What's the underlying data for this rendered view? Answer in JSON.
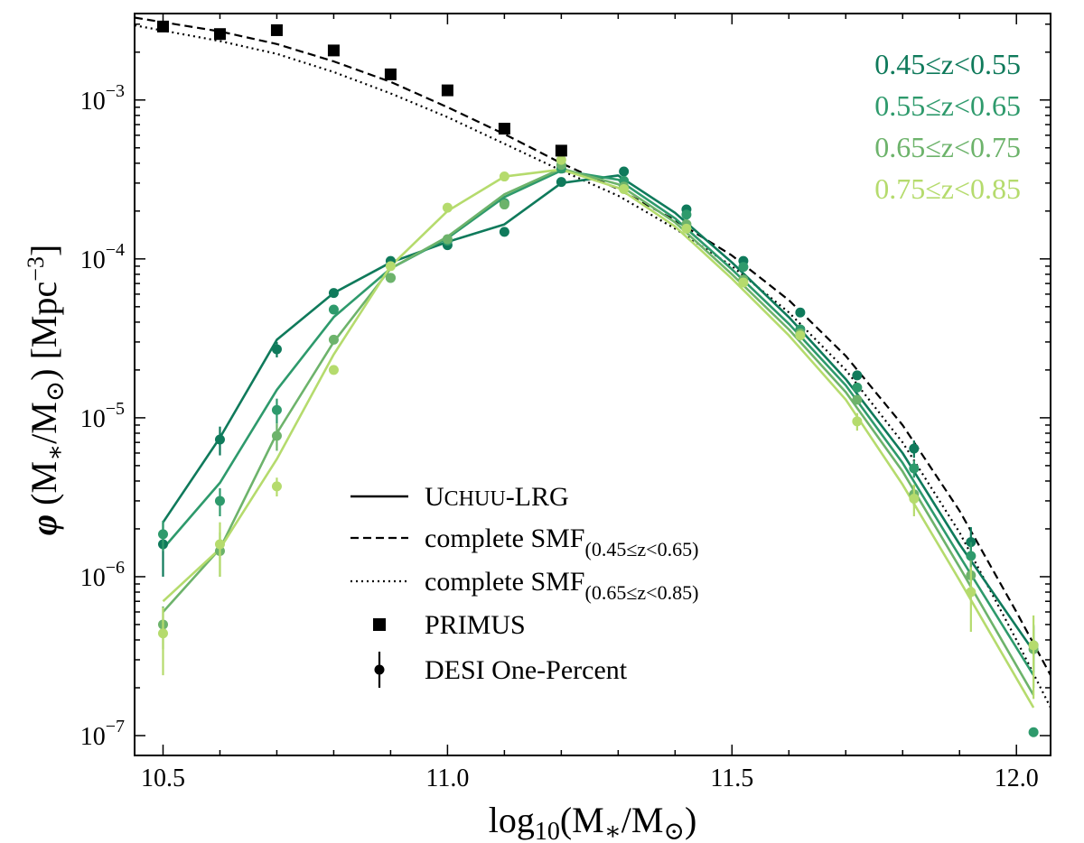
{
  "chart_data": {
    "type": "line",
    "xlabel": "log10(M*/M⊙)",
    "ylabel": "φ (M*/M⊙) [Mpc^-3]",
    "xlim": [
      10.45,
      12.06
    ],
    "ylog": true,
    "ylim": [
      7.5e-08,
      0.0035
    ],
    "x_ticks": [
      10.5,
      11.0,
      11.5,
      12.0
    ],
    "x_tick_labels": [
      "10.5",
      "11.0",
      "11.5",
      "12.0"
    ],
    "y_ticks": [
      1e-07,
      1e-06,
      1e-05,
      0.0001,
      0.001
    ],
    "y_tick_labels": [
      {
        "base": "10",
        "exp": "−7"
      },
      {
        "base": "10",
        "exp": "−6"
      },
      {
        "base": "10",
        "exp": "−5"
      },
      {
        "base": "10",
        "exp": "−4"
      },
      {
        "base": "10",
        "exp": "−3"
      }
    ],
    "series": [
      {
        "name": "0.45≤z<0.55",
        "color": "#0f7a5b",
        "model_x": [
          10.5,
          10.6,
          10.7,
          10.8,
          10.9,
          11.0,
          11.1,
          11.2,
          11.3,
          11.4,
          11.5,
          11.6,
          11.7,
          11.8,
          11.9,
          12.03
        ],
        "model_y": [
          2.2e-06,
          7.5e-06,
          3.1e-05,
          6.1e-05,
          9.5e-05,
          0.000128,
          0.000165,
          0.0003,
          0.000335,
          0.000195,
          9.5e-05,
          4.3e-05,
          1.75e-05,
          6e-06,
          1.6e-06,
          3.4e-07
        ],
        "obs_x": [
          10.5,
          10.6,
          10.7,
          10.8,
          10.9,
          11.0,
          11.1,
          11.2,
          11.31,
          11.42,
          11.52,
          11.62,
          11.72,
          11.82,
          11.92,
          12.03
        ],
        "obs_y": [
          1.6e-06,
          7.3e-06,
          2.7e-05,
          6.1e-05,
          9.7e-05,
          0.000122,
          0.000148,
          0.000305,
          0.000355,
          0.000205,
          9.7e-05,
          4.6e-05,
          1.85e-05,
          6.4e-06,
          1.65e-06,
          3.7e-07
        ],
        "obs_err": [
          6e-07,
          1.5e-06,
          3e-06,
          0,
          0,
          0,
          0,
          0,
          0,
          0,
          0,
          0,
          0,
          8e-07,
          4e-07,
          1.2e-07
        ]
      },
      {
        "name": "0.55≤z<0.65",
        "color": "#2e9a6c",
        "model_x": [
          10.5,
          10.6,
          10.7,
          10.8,
          10.9,
          11.0,
          11.1,
          11.2,
          11.3,
          11.4,
          11.5,
          11.6,
          11.7,
          11.8,
          11.9,
          12.03
        ],
        "model_y": [
          1.5e-06,
          3.9e-06,
          1.5e-05,
          4.3e-05,
          8.7e-05,
          0.000135,
          0.000245,
          0.00036,
          0.000315,
          0.00018,
          8.6e-05,
          3.9e-05,
          1.6e-05,
          5.2e-06,
          1.35e-06,
          2.4e-07
        ],
        "obs_x": [
          10.5,
          10.6,
          10.7,
          10.8,
          10.9,
          11.0,
          11.1,
          11.2,
          11.31,
          11.42,
          11.52,
          11.62,
          11.72,
          11.82,
          11.92,
          12.03
        ],
        "obs_y": [
          1.85e-06,
          3e-06,
          1.12e-05,
          4.8e-05,
          7.6e-05,
          0.00013,
          0.000225,
          0.00037,
          0.00031,
          0.00019,
          8.9e-05,
          3.6e-05,
          1.55e-05,
          4.8e-06,
          1.35e-06,
          1.05e-07
        ],
        "obs_err": [
          4e-07,
          6e-07,
          2e-06,
          0,
          0,
          0,
          0,
          0,
          0,
          0,
          0,
          0,
          0,
          6e-07,
          3e-07,
          0
        ]
      },
      {
        "name": "0.65≤z<0.75",
        "color": "#6db36b",
        "model_x": [
          10.5,
          10.6,
          10.7,
          10.8,
          10.9,
          11.0,
          11.1,
          11.2,
          11.3,
          11.4,
          11.5,
          11.6,
          11.7,
          11.8,
          11.9,
          12.03
        ],
        "model_y": [
          6e-07,
          1.5e-06,
          8e-06,
          3e-05,
          8.7e-05,
          0.000138,
          0.000255,
          0.00037,
          0.000295,
          0.00017,
          8e-05,
          3.6e-05,
          1.45e-05,
          4.6e-06,
          1.15e-06,
          1.8e-07
        ],
        "obs_x": [
          10.5,
          10.6,
          10.7,
          10.8,
          10.9,
          11.0,
          11.1,
          11.2,
          11.31,
          11.42,
          11.52,
          11.62,
          11.72,
          11.82,
          11.92,
          12.03
        ],
        "obs_y": [
          5e-07,
          1.45e-06,
          7.7e-06,
          3.1e-05,
          7.6e-05,
          0.000133,
          0.00022,
          0.00039,
          0.000285,
          0.000165,
          7.4e-05,
          3.4e-05,
          1.3e-05,
          3.3e-06,
          1.02e-06,
          3.5e-07
        ],
        "obs_err": [
          1.5e-07,
          4.5e-07,
          1.5e-06,
          0,
          0,
          0,
          0,
          0,
          0,
          0,
          0,
          0,
          0,
          5e-07,
          2.5e-07,
          1.5e-07
        ]
      },
      {
        "name": "0.75≤z<0.85",
        "color": "#b5db6d",
        "model_x": [
          10.5,
          10.6,
          10.7,
          10.8,
          10.9,
          11.0,
          11.1,
          11.2,
          11.3,
          11.4,
          11.5,
          11.6,
          11.7,
          11.8,
          11.9,
          12.03
        ],
        "model_y": [
          7e-07,
          1.5e-06,
          5.5e-06,
          2.5e-05,
          9e-05,
          0.0002,
          0.00033,
          0.000365,
          0.00028,
          0.00016,
          7.5e-05,
          3.3e-05,
          1.3e-05,
          3.8e-06,
          9.5e-07,
          1.5e-07
        ],
        "obs_x": [
          10.5,
          10.6,
          10.7,
          10.8,
          10.9,
          11.0,
          11.1,
          11.2,
          11.31,
          11.42,
          11.52,
          11.62,
          11.72,
          11.82,
          11.92,
          12.03
        ],
        "obs_y": [
          4.4e-07,
          1.6e-06,
          3.7e-06,
          2e-05,
          9e-05,
          0.00021,
          0.00033,
          0.00042,
          0.000275,
          0.000155,
          7.1e-05,
          3.3e-05,
          9.5e-06,
          3.1e-06,
          8e-07,
          3.7e-07
        ],
        "obs_err": [
          2e-07,
          6e-07,
          5e-07,
          0,
          0,
          0,
          0,
          0,
          0,
          0,
          0,
          1e-06,
          1.2e-06,
          7e-07,
          3.5e-07,
          2e-07
        ]
      }
    ],
    "complete_smf_low": {
      "x": [
        10.45,
        10.6,
        10.7,
        10.8,
        10.9,
        11.0,
        11.1,
        11.2,
        11.3,
        11.4,
        11.5,
        11.6,
        11.7,
        11.8,
        11.9,
        12.0,
        12.06
      ],
      "y": [
        0.0033,
        0.0027,
        0.00225,
        0.00175,
        0.0013,
        0.0009,
        0.00061,
        0.0004,
        0.000275,
        0.000175,
        0.000105,
        5.5e-05,
        2.45e-05,
        9e-06,
        2.6e-06,
        6e-07,
        2.4e-07
      ]
    },
    "complete_smf_high": {
      "x": [
        10.45,
        10.6,
        10.7,
        10.8,
        10.9,
        11.0,
        11.1,
        11.2,
        11.3,
        11.4,
        11.5,
        11.6,
        11.7,
        11.8,
        11.9,
        12.0,
        12.06
      ],
      "y": [
        0.00295,
        0.00235,
        0.00195,
        0.0015,
        0.0011,
        0.00078,
        0.00053,
        0.00036,
        0.00025,
        0.000155,
        9e-05,
        4.6e-05,
        2e-05,
        7e-06,
        1.9e-06,
        4e-07,
        1.5e-07
      ]
    },
    "primus": {
      "x": [
        10.5,
        10.6,
        10.7,
        10.8,
        10.9,
        11.0,
        11.1,
        11.2
      ],
      "y": [
        0.0029,
        0.0026,
        0.00275,
        0.00205,
        0.00145,
        0.00115,
        0.00066,
        0.00048
      ]
    },
    "legend": [
      {
        "kind": "solid",
        "label_prefix": "U",
        "label_smallcaps": "CHUU",
        "label_suffix": "-LRG"
      },
      {
        "kind": "dashed",
        "label": "complete SMF",
        "subscript": "(0.45≤z<0.65)"
      },
      {
        "kind": "dotted",
        "label": "complete SMF",
        "subscript": "(0.65≤z<0.85)"
      },
      {
        "kind": "square",
        "label": "PRIMUS"
      },
      {
        "kind": "errbar",
        "label": "DESI One-Percent"
      }
    ],
    "z_labels": [
      "0.45≤z<0.55",
      "0.55≤z<0.65",
      "0.65≤z<0.75",
      "0.75≤z<0.85"
    ]
  }
}
